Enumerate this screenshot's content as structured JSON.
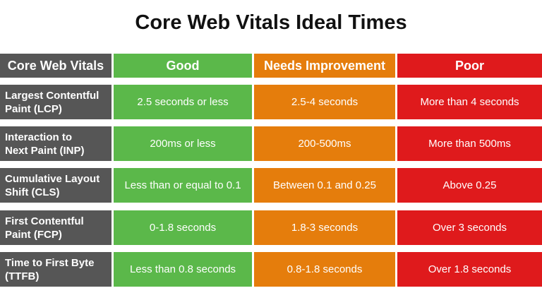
{
  "header": {
    "title": "Core Web Vitals Ideal Times"
  },
  "table": {
    "columns": [
      "Core Web Vitals",
      "Good",
      "Needs Improvement",
      "Poor"
    ],
    "rows": [
      [
        "Largest Contentful\nPaint (LCP)",
        "2.5 seconds or less",
        "2.5-4 seconds",
        "More than 4 seconds"
      ],
      [
        "Interaction to\nNext Paint (INP)",
        "200ms or less",
        "200-500ms",
        "More than 500ms"
      ],
      [
        "Cumulative Layout\nShift (CLS)",
        "Less than or equal to 0.1",
        "Between 0.1 and 0.25",
        "Above 0.25"
      ],
      [
        "First Contentful\nPaint (FCP)",
        "0-1.8 seconds",
        "1.8-3 seconds",
        "Over 3 seconds"
      ],
      [
        "Time to First Byte\n(TTFB)",
        "Less than 0.8 seconds",
        "0.8-1.8 seconds",
        "Over 1.8 seconds"
      ]
    ]
  }
}
